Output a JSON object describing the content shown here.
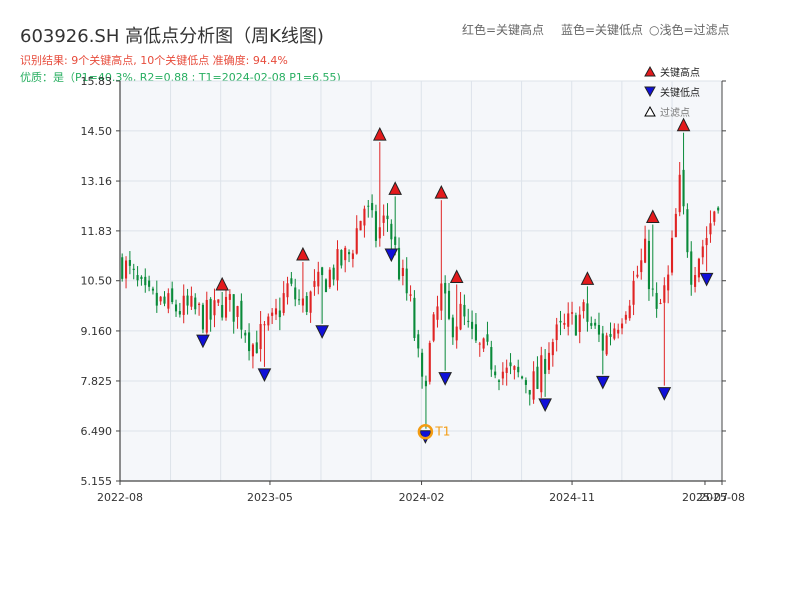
{
  "header": {
    "title": "603926.SH 高低点分析图（周K线图)",
    "result": "识别结果: 9个关键高点, 10个关键低点   准确度: 94.4%",
    "quality": "优质：是（P1=40.3%, R2=0.88 ; T1=2024-02-08 P1=6.55)",
    "legend_red": "红色=关键高点",
    "legend_blue": "蓝色=关键低点",
    "legend_light": "浅色=过滤点"
  },
  "colors": {
    "up": "#e02424",
    "down": "#0a8a3a",
    "high_marker": "#e31a1c",
    "low_marker": "#1010d8",
    "t1_ring": "#f39c12",
    "plot_bg": "#f5f7fa",
    "grid": "#dde3ea"
  },
  "chart_data": {
    "type": "candlestick",
    "xlim": [
      "2022-08-01",
      "2025-08-01"
    ],
    "ylim": [
      5.155,
      15.83
    ],
    "y_ticks": [
      "5.155",
      "6.490",
      "7.825",
      "9.160",
      "10.50",
      "11.83",
      "13.16",
      "14.50",
      "15.83"
    ],
    "y_tick_values": [
      5.155,
      6.49,
      7.825,
      9.16,
      10.5,
      11.83,
      13.16,
      14.5,
      15.83
    ],
    "x_ticks": [
      "2022-08",
      "2023-05",
      "2024-02",
      "2024-11",
      "2025-07",
      "2025-08"
    ],
    "x_tick_dates": [
      "2022-08-01",
      "2023-05-01",
      "2024-02-01",
      "2024-11-01",
      "2025-07-01",
      "2025-08-01"
    ],
    "anchors": [
      [
        "2022-08-05",
        11.0
      ],
      [
        "2022-09-16",
        10.0
      ],
      [
        "2022-10-28",
        9.8
      ],
      [
        "2022-12-09",
        9.7
      ],
      [
        "2023-01-13",
        9.5
      ],
      [
        "2023-02-03",
        9.9
      ],
      [
        "2023-03-03",
        9.7
      ],
      [
        "2023-03-31",
        8.8
      ],
      [
        "2023-05-05",
        9.3
      ],
      [
        "2023-06-02",
        10.3
      ],
      [
        "2023-06-30",
        9.8
      ],
      [
        "2023-07-21",
        10.2
      ],
      [
        "2023-08-18",
        10.7
      ],
      [
        "2023-09-22",
        11.2
      ],
      [
        "2023-10-20",
        12.5
      ],
      [
        "2023-11-10",
        11.7
      ],
      [
        "2023-12-01",
        12.2
      ],
      [
        "2023-12-22",
        10.8
      ],
      [
        "2024-01-12",
        9.8
      ],
      [
        "2024-02-02",
        7.6
      ],
      [
        "2024-02-23",
        9.2
      ],
      [
        "2024-03-08",
        10.2
      ],
      [
        "2024-03-22",
        9.3
      ],
      [
        "2024-04-12",
        9.6
      ],
      [
        "2024-05-10",
        8.7
      ],
      [
        "2024-06-07",
        8.4
      ],
      [
        "2024-07-05",
        8.0
      ],
      [
        "2024-08-02",
        7.9
      ],
      [
        "2024-08-30",
        7.7
      ],
      [
        "2024-09-20",
        8.8
      ],
      [
        "2024-10-25",
        9.3
      ],
      [
        "2024-11-22",
        9.6
      ],
      [
        "2024-12-27",
        8.8
      ],
      [
        "2025-01-24",
        9.5
      ],
      [
        "2025-02-21",
        10.4
      ],
      [
        "2025-03-14",
        11.2
      ],
      [
        "2025-04-04",
        9.5
      ],
      [
        "2025-04-25",
        10.5
      ],
      [
        "2025-05-16",
        13.0
      ],
      [
        "2025-06-06",
        10.8
      ],
      [
        "2025-07-04",
        11.7
      ],
      [
        "2025-07-25",
        12.8
      ]
    ],
    "key_highs": [
      {
        "date": "2023-02-03",
        "price": 10.2
      },
      {
        "date": "2023-06-30",
        "price": 11.0
      },
      {
        "date": "2023-11-17",
        "price": 14.2
      },
      {
        "date": "2023-12-15",
        "price": 12.75
      },
      {
        "date": "2024-03-08",
        "price": 12.65
      },
      {
        "date": "2024-04-05",
        "price": 10.4
      },
      {
        "date": "2024-11-29",
        "price": 10.35
      },
      {
        "date": "2025-03-28",
        "price": 12.0
      },
      {
        "date": "2025-05-23",
        "price": 14.45
      }
    ],
    "key_lows": [
      {
        "date": "2022-12-30",
        "price": 9.1
      },
      {
        "date": "2023-04-21",
        "price": 8.2
      },
      {
        "date": "2023-08-04",
        "price": 9.35
      },
      {
        "date": "2023-12-08",
        "price": 11.4
      },
      {
        "date": "2024-02-08",
        "price": 6.55
      },
      {
        "date": "2024-03-15",
        "price": 8.1
      },
      {
        "date": "2024-09-13",
        "price": 7.4
      },
      {
        "date": "2024-12-27",
        "price": 8.0
      },
      {
        "date": "2025-04-18",
        "price": 7.7
      },
      {
        "date": "2025-07-04",
        "price": 10.75
      }
    ],
    "t1": {
      "label": "T1",
      "date": "2024-02-08",
      "price": 6.55
    },
    "legend": {
      "placement": "top-right",
      "items": [
        {
          "label": "关键高点",
          "marker": "triangle-up",
          "color": "#e31a1c"
        },
        {
          "label": "关键低点",
          "marker": "triangle-down",
          "color": "#1010d8"
        },
        {
          "label": "过滤点",
          "marker": "triangle-up-hollow",
          "color": "#666666"
        }
      ]
    },
    "grid": true
  }
}
